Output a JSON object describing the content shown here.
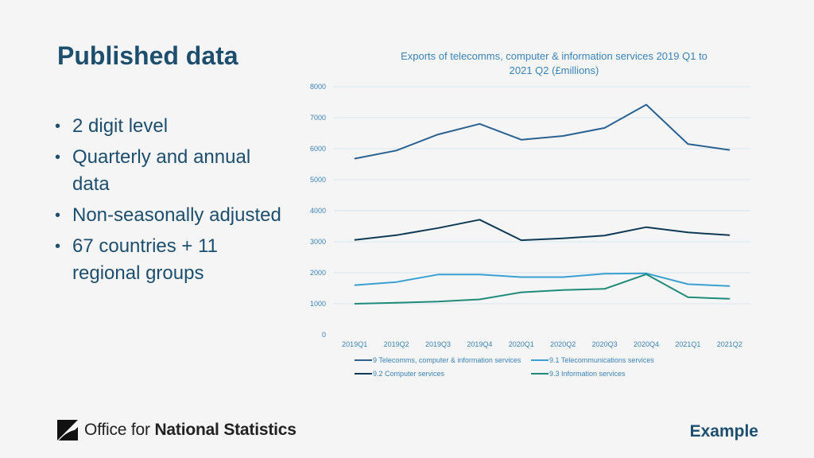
{
  "page": {
    "title": "Published data",
    "bullets": [
      "2 digit level",
      "Quarterly and annual data",
      "Non-seasonally adjusted",
      "67 countries + 11 regional groups"
    ]
  },
  "footer": {
    "logo_regular": "Office for ",
    "logo_bold": "National Statistics",
    "example_label": "Example"
  },
  "chart_data": {
    "type": "line",
    "title": "Exports of telecomms, computer & information services 2019 Q1 to 2021 Q2 (£millions)",
    "title_lines": [
      "Exports of telecomms, computer & information services 2019 Q1 to",
      "2021 Q2 (£millions)"
    ],
    "xlabel": "",
    "ylabel": "",
    "categories": [
      "2019Q1",
      "2019Q2",
      "2019Q3",
      "2019Q4",
      "2020Q1",
      "2020Q2",
      "2020Q3",
      "2020Q4",
      "2021Q1",
      "2021Q2"
    ],
    "ylim": [
      0,
      8000
    ],
    "yticks": [
      0,
      1000,
      2000,
      3000,
      4000,
      5000,
      6000,
      7000,
      8000
    ],
    "grid": true,
    "legend_position": "bottom",
    "series": [
      {
        "name": "9 Telecomms, computer & information services",
        "color": "#2a6191",
        "values": [
          5680,
          5940,
          6460,
          6800,
          6290,
          6410,
          6670,
          7420,
          6150,
          5960
        ]
      },
      {
        "name": "9.1 Telecommunications services",
        "color": "#3aa0cf",
        "values": [
          1600,
          1700,
          1940,
          1940,
          1860,
          1860,
          1970,
          1980,
          1630,
          1570
        ]
      },
      {
        "name": "9.2 Computer services",
        "color": "#0e3a56",
        "values": [
          3060,
          3210,
          3440,
          3710,
          3050,
          3110,
          3200,
          3470,
          3300,
          3210
        ]
      },
      {
        "name": "9.3 Information services",
        "color": "#1f8b78",
        "values": [
          1000,
          1030,
          1070,
          1140,
          1370,
          1440,
          1480,
          1950,
          1210,
          1160
        ]
      }
    ]
  }
}
